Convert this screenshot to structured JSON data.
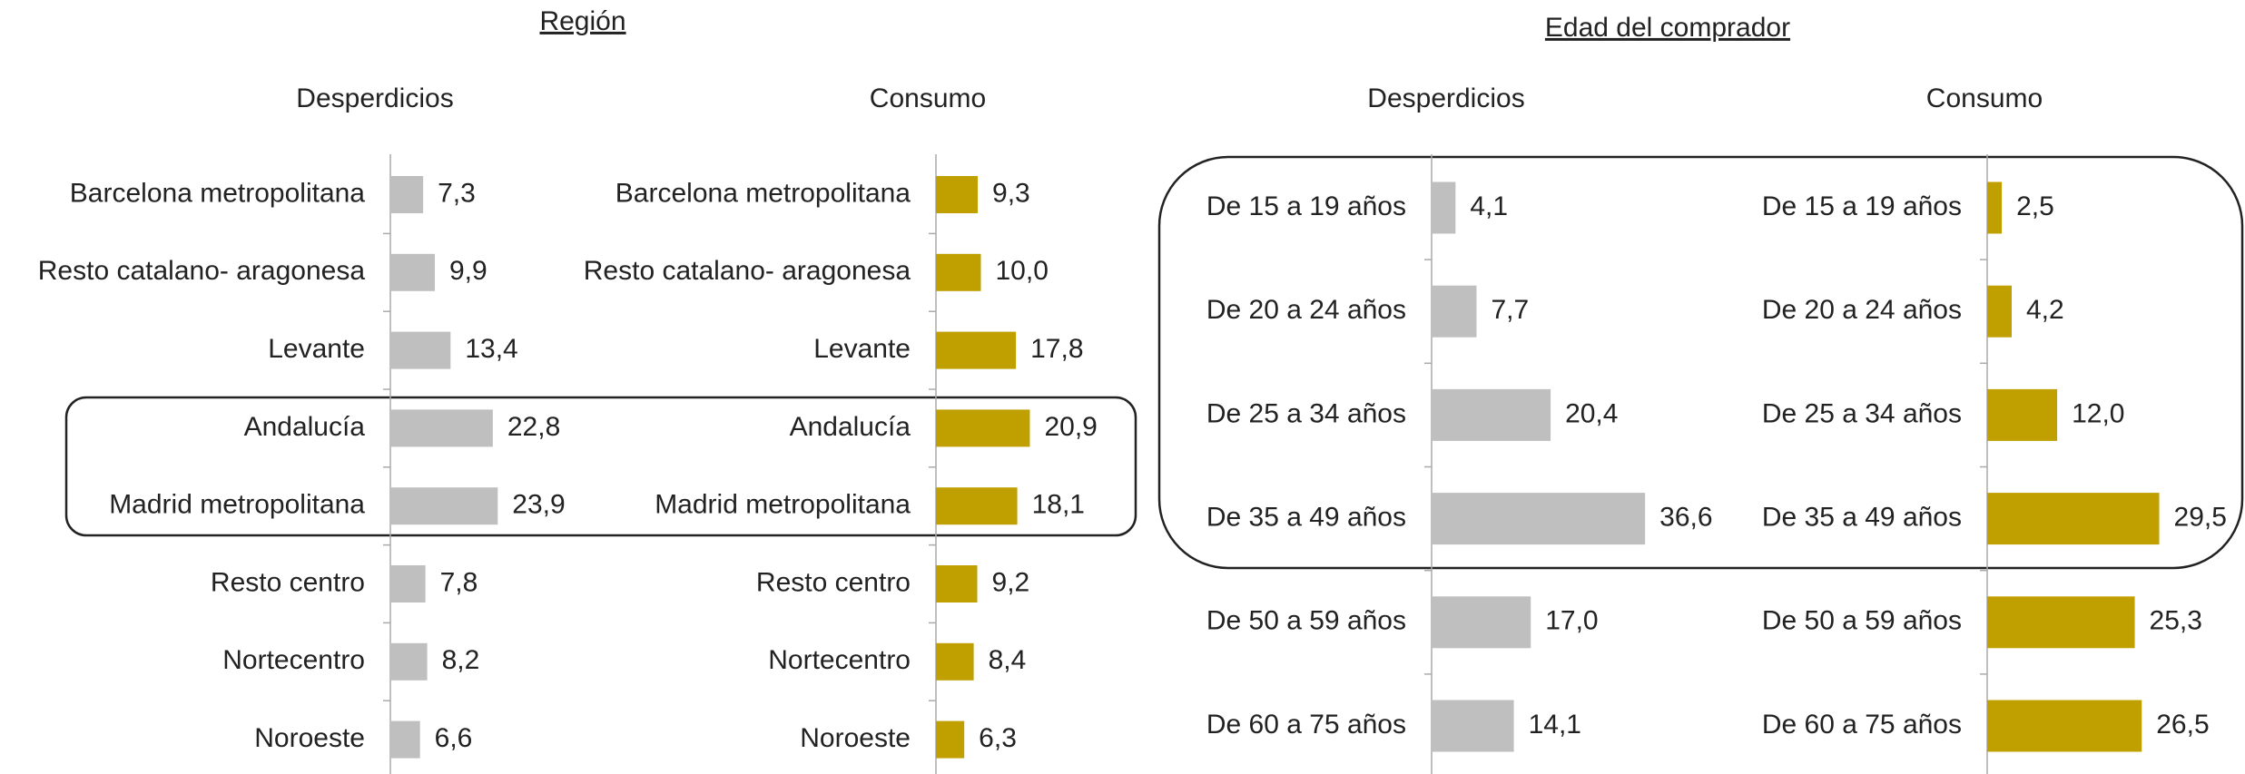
{
  "headings": [
    "Región",
    "Edad del comprador"
  ],
  "chart_data": [
    {
      "type": "bar",
      "title": "Desperdicios",
      "orientation": "horizontal",
      "color": "#bfbfbf",
      "xlim": [
        0,
        40
      ],
      "categories": [
        "Barcelona metropolitana",
        "Resto catalano- aragonesa",
        "Levante",
        "Andalucía",
        "Madrid metropolitana",
        "Resto centro",
        "Nortecentro",
        "Noroeste"
      ],
      "values": [
        7.3,
        9.9,
        13.4,
        22.8,
        23.9,
        7.8,
        8.2,
        6.6
      ],
      "value_labels": [
        "7,3",
        "9,9",
        "13,4",
        "22,8",
        "23,9",
        "7,8",
        "8,2",
        "6,6"
      ]
    },
    {
      "type": "bar",
      "title": "Consumo",
      "orientation": "horizontal",
      "color": "#c0a000",
      "xlim": [
        0,
        40
      ],
      "categories": [
        "Barcelona metropolitana",
        "Resto catalano- aragonesa",
        "Levante",
        "Andalucía",
        "Madrid metropolitana",
        "Resto centro",
        "Nortecentro",
        "Noroeste"
      ],
      "values": [
        9.3,
        10.0,
        17.8,
        20.9,
        18.1,
        9.2,
        8.4,
        6.3
      ],
      "value_labels": [
        "9,3",
        "10,0",
        "17,8",
        "20,9",
        "18,1",
        "9,2",
        "8,4",
        "6,3"
      ]
    },
    {
      "type": "bar",
      "title": "Desperdicios",
      "orientation": "horizontal",
      "color": "#bfbfbf",
      "xlim": [
        0,
        40
      ],
      "categories": [
        "De 15 a 19 años",
        "De 20 a 24 años",
        "De 25 a 34 años",
        "De 35 a 49 años",
        "De 50 a 59 años",
        "De 60 a 75 años"
      ],
      "values": [
        4.1,
        7.7,
        20.4,
        36.6,
        17.0,
        14.1
      ],
      "value_labels": [
        "4,1",
        "7,7",
        "20,4",
        "36,6",
        "17,0",
        "14,1"
      ]
    },
    {
      "type": "bar",
      "title": "Consumo",
      "orientation": "horizontal",
      "color": "#c0a000",
      "xlim": [
        0,
        40
      ],
      "categories": [
        "De 15 a 19 años",
        "De 20 a 24 años",
        "De 25 a 34 años",
        "De 35 a 49 años",
        "De 50 a 59 años",
        "De 60 a 75 años"
      ],
      "values": [
        2.5,
        4.2,
        12.0,
        29.5,
        25.3,
        26.5
      ],
      "value_labels": [
        "2,5",
        "4,2",
        "12,0",
        "29,5",
        "25,3",
        "26,5"
      ]
    }
  ]
}
